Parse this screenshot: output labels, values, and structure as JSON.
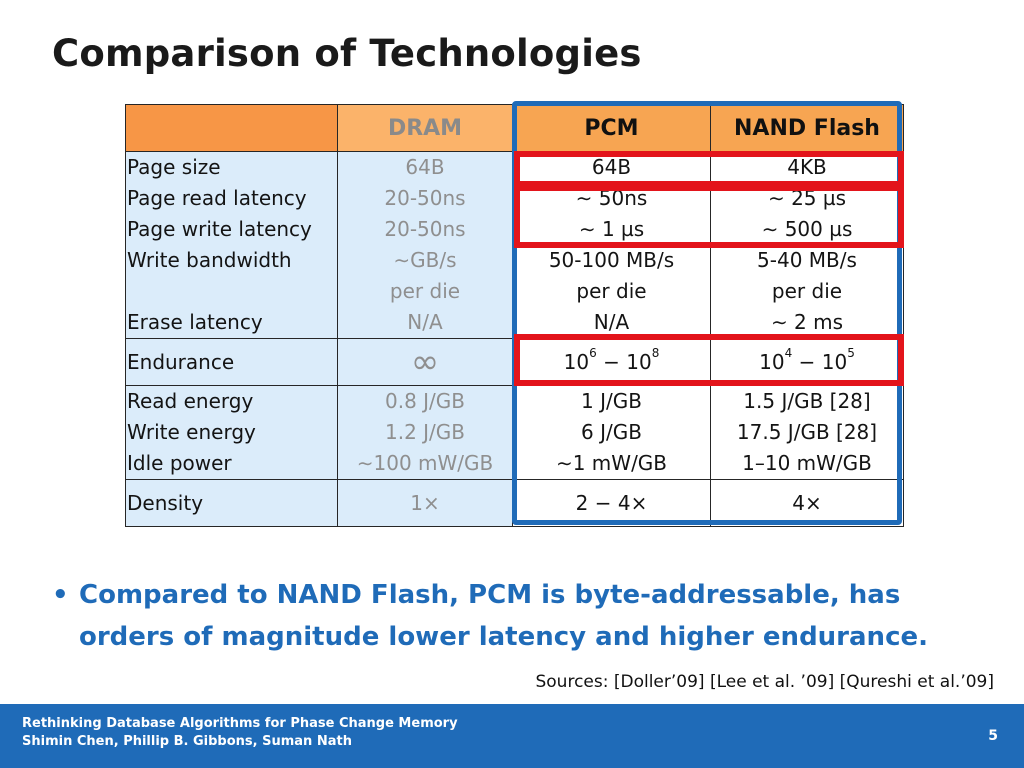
{
  "slide": {
    "title": "Comparison of Technologies",
    "table": {
      "headers": [
        "",
        "DRAM",
        "PCM",
        "NAND  Flash"
      ],
      "group1": {
        "labels": [
          "Page  size",
          "Page  read  latency",
          "Page  write latency",
          "Write bandwidth",
          "",
          "Erase  latency"
        ],
        "dram": [
          "64B",
          "20-50ns",
          "20-50ns",
          "∼GB/s",
          "per die",
          "N/A"
        ],
        "pcm": [
          "64B",
          "∼ 50ns",
          "∼ 1 µs",
          "50-100 MB/s",
          "per die",
          "N/A"
        ],
        "nand": [
          "4KB",
          "∼ 25 µs",
          "∼ 500 µs",
          "5-40 MB/s",
          "per die",
          "∼ 2 ms"
        ]
      },
      "endurance": {
        "label": "Endurance",
        "dram": "∞",
        "pcm": {
          "base1": "10",
          "exp1": "6",
          "sep": " − ",
          "base2": "10",
          "exp2": "8"
        },
        "nand": {
          "base1": "10",
          "exp1": "4",
          "sep": " − ",
          "base2": "10",
          "exp2": "5"
        }
      },
      "energy": {
        "labels": [
          "Read  energy",
          "Write energy",
          "Idle power"
        ],
        "dram": [
          "0.8 J/GB",
          "1.2 J/GB",
          "∼100 mW/GB"
        ],
        "pcm": [
          "1 J/GB",
          "6 J/GB",
          "∼1 mW/GB"
        ],
        "nand": [
          "1.5 J/GB [28]",
          "17.5 J/GB [28]",
          "1–10 mW/GB"
        ]
      },
      "density": {
        "label": "Density",
        "dram": "1×",
        "pcm": "2 − 4×",
        "nand": "4×"
      }
    },
    "bullet": "Compared to NAND Flash, PCM is byte-addressable, has orders of magnitude lower latency and higher endurance.",
    "sources": "Sources: [Doller’09] [Lee et al. ’09] [Qureshi et al.’09]"
  },
  "footer": {
    "line1": "Rethinking Database Algorithms for Phase Change Memory",
    "line2": "Shimin Chen, Phillip B. Gibbons, Suman Nath",
    "page": "5"
  },
  "colors": {
    "accent_blue": "#1f6bb8",
    "highlight_red": "#e3141b",
    "header_orange": "#f79646",
    "row_blue": "#dbecfa"
  }
}
